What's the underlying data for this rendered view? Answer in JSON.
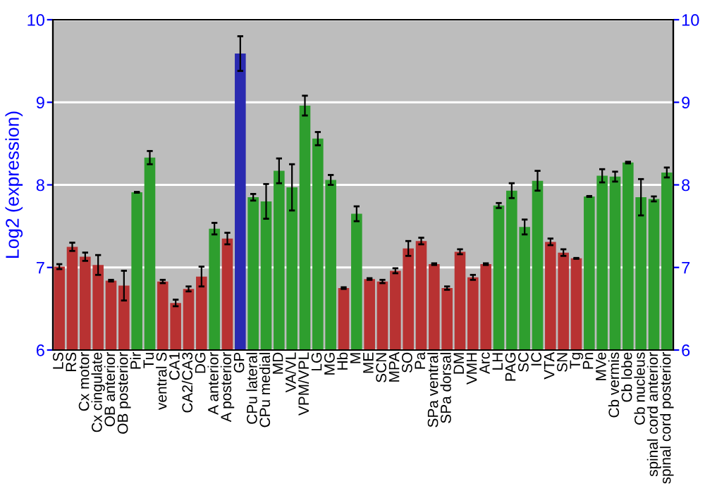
{
  "chart_data": {
    "type": "bar",
    "ylabel": "Log2 (expression)",
    "categories": [
      "LS",
      "RS",
      "Cx motor",
      "Cx cingulate",
      "OB anterior",
      "OB posterior",
      "Pir",
      "Tu",
      "ventral S",
      "CA1",
      "CA2/CA3",
      "DG",
      "A anterior",
      "A posterior",
      "GP",
      "CPu lateral",
      "CPu medial",
      "MD",
      "VA/VL",
      "VPM/VPL",
      "LG",
      "MG",
      "Hb",
      "M",
      "ME",
      "SCN",
      "MPA",
      "SO",
      "Pa",
      "SPa ventral",
      "SPa dorsal",
      "DM",
      "VMH",
      "Arc",
      "LH",
      "PAG",
      "SC",
      "IC",
      "VTA",
      "SN",
      "Tg",
      "Pn",
      "MVe",
      "Cb vermis",
      "Cb lobe",
      "Cb nucleus",
      "spinal cord anterior",
      "spinal cord posterior"
    ],
    "values": [
      7.01,
      7.25,
      7.13,
      7.03,
      6.84,
      6.78,
      7.91,
      8.33,
      6.83,
      6.57,
      6.74,
      6.89,
      7.47,
      7.35,
      9.59,
      7.85,
      7.8,
      8.17,
      7.97,
      8.96,
      8.56,
      8.06,
      6.75,
      7.65,
      6.86,
      6.83,
      6.96,
      7.23,
      7.32,
      7.04,
      6.75,
      7.19,
      6.88,
      7.04,
      7.75,
      7.93,
      7.49,
      8.05,
      7.31,
      7.18,
      7.11,
      7.86,
      8.11,
      8.1,
      8.27,
      7.85,
      7.83,
      8.15
    ],
    "errors": [
      0.03,
      0.05,
      0.05,
      0.12,
      0.01,
      0.18,
      0.005,
      0.08,
      0.02,
      0.04,
      0.03,
      0.12,
      0.07,
      0.07,
      0.21,
      0.04,
      0.21,
      0.15,
      0.28,
      0.12,
      0.08,
      0.06,
      0.01,
      0.09,
      0.01,
      0.02,
      0.03,
      0.09,
      0.04,
      0.01,
      0.02,
      0.03,
      0.03,
      0.01,
      0.03,
      0.09,
      0.09,
      0.12,
      0.04,
      0.04,
      0.005,
      0.005,
      0.08,
      0.06,
      0.01,
      0.22,
      0.03,
      0.06
    ],
    "colors": [
      "#b83232",
      "#b83232",
      "#b83232",
      "#b83232",
      "#b83232",
      "#b83232",
      "#2e9e2e",
      "#2e9e2e",
      "#b83232",
      "#b83232",
      "#b83232",
      "#b83232",
      "#2e9e2e",
      "#b83232",
      "#2a2ab0",
      "#2e9e2e",
      "#2e9e2e",
      "#2e9e2e",
      "#2e9e2e",
      "#2e9e2e",
      "#2e9e2e",
      "#2e9e2e",
      "#b83232",
      "#2e9e2e",
      "#b83232",
      "#b83232",
      "#b83232",
      "#b83232",
      "#b83232",
      "#b83232",
      "#b83232",
      "#b83232",
      "#b83232",
      "#b83232",
      "#2e9e2e",
      "#2e9e2e",
      "#2e9e2e",
      "#2e9e2e",
      "#b83232",
      "#b83232",
      "#b83232",
      "#2e9e2e",
      "#2e9e2e",
      "#2e9e2e",
      "#2e9e2e",
      "#2e9e2e",
      "#2e9e2e",
      "#2e9e2e"
    ],
    "ylim": [
      6,
      10
    ],
    "yticks": [
      6,
      7,
      8,
      9,
      10
    ],
    "y2lim": [
      6,
      10
    ],
    "y2ticks": [
      6,
      7,
      8,
      9,
      10
    ],
    "grid": "y"
  }
}
